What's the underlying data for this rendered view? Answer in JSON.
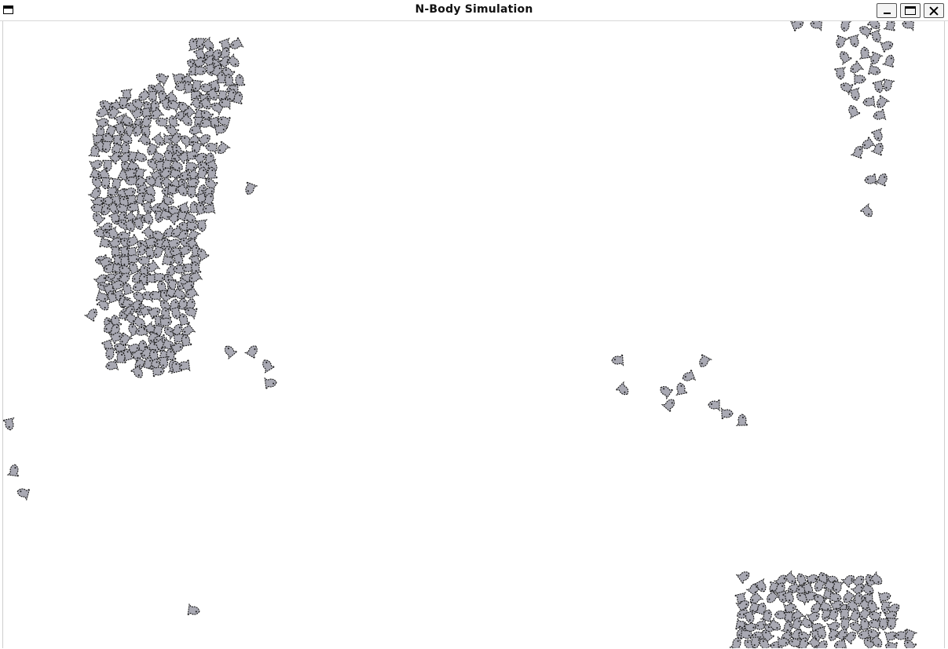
{
  "window": {
    "title": "N-Body Simulation",
    "icons": {
      "menu": "window-menu-icon",
      "minimize": "minimize-icon",
      "maximize": "maximize-icon",
      "close": "close-icon"
    }
  },
  "simulation": {
    "body_icon": "fish-sprite-icon",
    "colors": {
      "body_fill": "#a9a9b3",
      "body_outline": "#1a1a1a",
      "background": "#ffffff"
    }
  }
}
